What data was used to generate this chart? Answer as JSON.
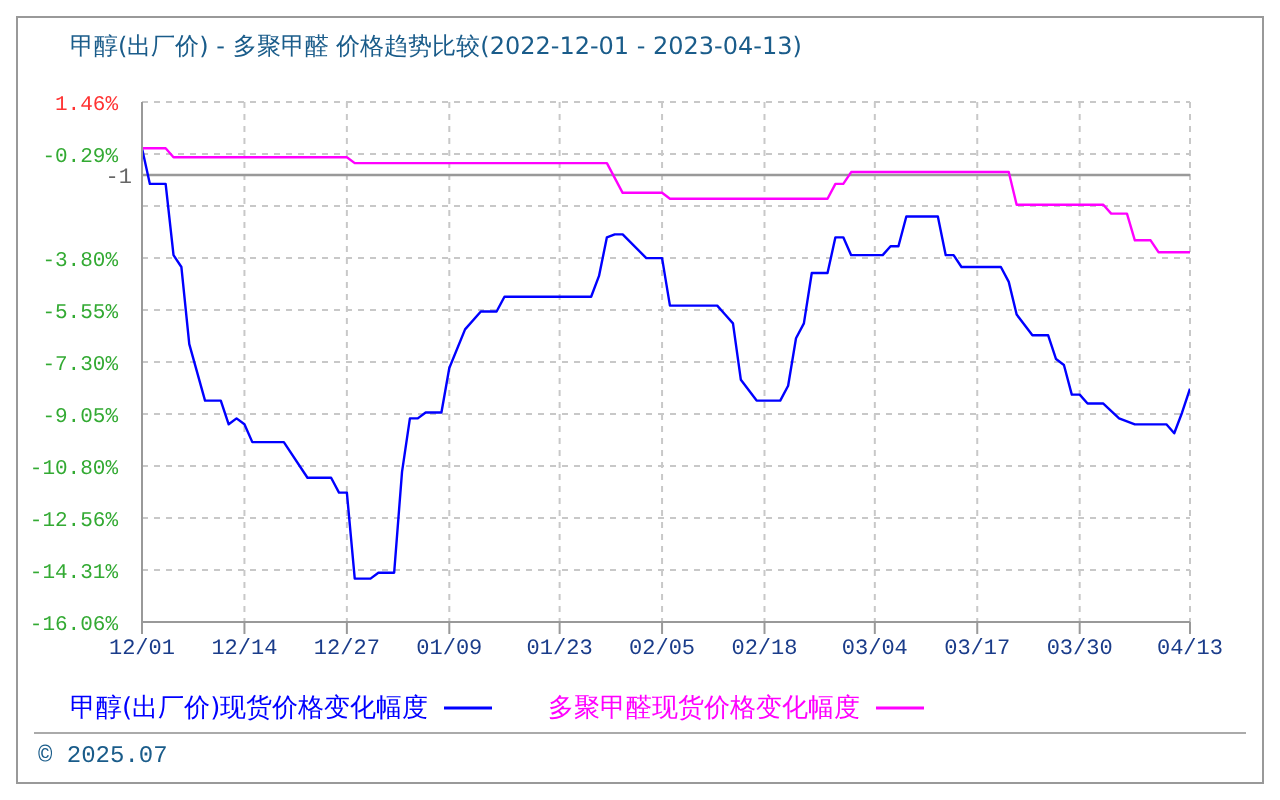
{
  "chart_data": {
    "type": "line",
    "title": "甲醇(出厂价) - 多聚甲醛 价格趋势比较(2022-12-01 - 2023-04-13)",
    "series": [
      {
        "name": "甲醇(出厂价)现货价格变化幅度",
        "color": "#0000ff",
        "x": [
          "2022-12-01",
          "2022-12-02",
          "2022-12-04",
          "2022-12-05",
          "2022-12-06",
          "2022-12-07",
          "2022-12-09",
          "2022-12-11",
          "2022-12-12",
          "2022-12-13",
          "2022-12-14",
          "2022-12-15",
          "2022-12-19",
          "2022-12-22",
          "2022-12-25",
          "2022-12-26",
          "2022-12-27",
          "2022-12-28",
          "2022-12-30",
          "2022-12-31",
          "2023-01-02",
          "2023-01-03",
          "2023-01-04",
          "2023-01-05",
          "2023-01-06",
          "2023-01-08",
          "2023-01-09",
          "2023-01-11",
          "2023-01-13",
          "2023-01-15",
          "2023-01-16",
          "2023-01-27",
          "2023-01-28",
          "2023-01-29",
          "2023-01-30",
          "2023-01-31",
          "2023-02-03",
          "2023-02-05",
          "2023-02-06",
          "2023-02-12",
          "2023-02-13",
          "2023-02-14",
          "2023-02-15",
          "2023-02-17",
          "2023-02-20",
          "2023-02-21",
          "2023-02-22",
          "2023-02-23",
          "2023-02-24",
          "2023-02-26",
          "2023-02-27",
          "2023-02-28",
          "2023-03-01",
          "2023-03-05",
          "2023-03-06",
          "2023-03-07",
          "2023-03-08",
          "2023-03-12",
          "2023-03-13",
          "2023-03-14",
          "2023-03-15",
          "2023-03-20",
          "2023-03-21",
          "2023-03-22",
          "2023-03-24",
          "2023-03-26",
          "2023-03-27",
          "2023-03-28",
          "2023-03-29",
          "2023-03-30",
          "2023-03-31",
          "2023-04-02",
          "2023-04-04",
          "2023-04-06",
          "2023-04-10",
          "2023-04-11",
          "2023-04-12",
          "2023-04-13"
        ],
        "values": [
          -0.1,
          -1.3,
          -1.3,
          -3.7,
          -4.1,
          -6.7,
          -8.6,
          -8.6,
          -9.4,
          -9.2,
          -9.4,
          -10.0,
          -10.0,
          -11.2,
          -11.2,
          -11.7,
          -11.7,
          -14.6,
          -14.6,
          -14.4,
          -14.4,
          -11.0,
          -9.2,
          -9.2,
          -9.0,
          -9.0,
          -7.5,
          -6.2,
          -5.6,
          -5.6,
          -5.1,
          -5.1,
          -4.4,
          -3.1,
          -3.0,
          -3.0,
          -3.8,
          -3.8,
          -5.4,
          -5.4,
          -5.7,
          -6.0,
          -7.9,
          -8.6,
          -8.6,
          -8.1,
          -6.5,
          -6.0,
          -4.3,
          -4.3,
          -3.1,
          -3.1,
          -3.7,
          -3.7,
          -3.4,
          -3.4,
          -2.4,
          -2.4,
          -3.7,
          -3.7,
          -4.1,
          -4.1,
          -4.6,
          -5.7,
          -6.4,
          -6.4,
          -7.2,
          -7.4,
          -8.4,
          -8.4,
          -8.7,
          -8.7,
          -9.2,
          -9.4,
          -9.4,
          -9.7,
          -9.0,
          -8.2
        ]
      },
      {
        "name": "多聚甲醛现货价格变化幅度",
        "color": "#ff00ff",
        "x": [
          "2022-12-01",
          "2022-12-04",
          "2022-12-05",
          "2022-12-27",
          "2022-12-28",
          "2023-01-29",
          "2023-01-31",
          "2023-02-05",
          "2023-02-06",
          "2023-02-26",
          "2023-02-27",
          "2023-02-28",
          "2023-03-01",
          "2023-03-21",
          "2023-03-22",
          "2023-04-02",
          "2023-04-03",
          "2023-04-05",
          "2023-04-06",
          "2023-04-08",
          "2023-04-09",
          "2023-04-13"
        ],
        "values": [
          -0.1,
          -0.1,
          -0.4,
          -0.4,
          -0.6,
          -0.6,
          -1.6,
          -1.6,
          -1.8,
          -1.8,
          -1.3,
          -1.3,
          -0.9,
          -0.9,
          -2.0,
          -2.0,
          -2.3,
          -2.3,
          -3.2,
          -3.2,
          -3.6,
          -3.6
        ]
      }
    ],
    "xlim": [
      "2022-12-01",
      "2023-04-13"
    ],
    "xticks": [
      {
        "value": "2022-12-01",
        "label": "12/01"
      },
      {
        "value": "2022-12-14",
        "label": "12/14"
      },
      {
        "value": "2022-12-27",
        "label": "12/27"
      },
      {
        "value": "2023-01-09",
        "label": "01/09"
      },
      {
        "value": "2023-01-23",
        "label": "01/23"
      },
      {
        "value": "2023-02-05",
        "label": "02/05"
      },
      {
        "value": "2023-02-18",
        "label": "02/18"
      },
      {
        "value": "2023-03-04",
        "label": "03/04"
      },
      {
        "value": "2023-03-17",
        "label": "03/17"
      },
      {
        "value": "2023-03-30",
        "label": "03/30"
      },
      {
        "value": "2023-04-13",
        "label": "04/13"
      }
    ],
    "ylim": [
      -16.06,
      1.46
    ],
    "yticks": [
      {
        "value": 1.46,
        "label": "1.46%"
      },
      {
        "value": -0.29,
        "label": "-0.29%"
      },
      {
        "value": -2.04,
        "label": null
      },
      {
        "value": -3.8,
        "label": "-3.80%"
      },
      {
        "value": -5.55,
        "label": "-5.55%"
      },
      {
        "value": -7.3,
        "label": "-7.30%"
      },
      {
        "value": -9.05,
        "label": "-9.05%"
      },
      {
        "value": -10.8,
        "label": "-10.80%"
      },
      {
        "value": -12.56,
        "label": "-12.56%"
      },
      {
        "value": -14.31,
        "label": "-14.31%"
      },
      {
        "value": -16.06,
        "label": "-16.06%"
      }
    ],
    "ref_lines": [
      {
        "axis": "y",
        "value": -1,
        "label": "-1",
        "color": "#999999"
      }
    ],
    "grid": true,
    "legend": "bottom",
    "annotations": [
      "© 2025.07"
    ]
  }
}
